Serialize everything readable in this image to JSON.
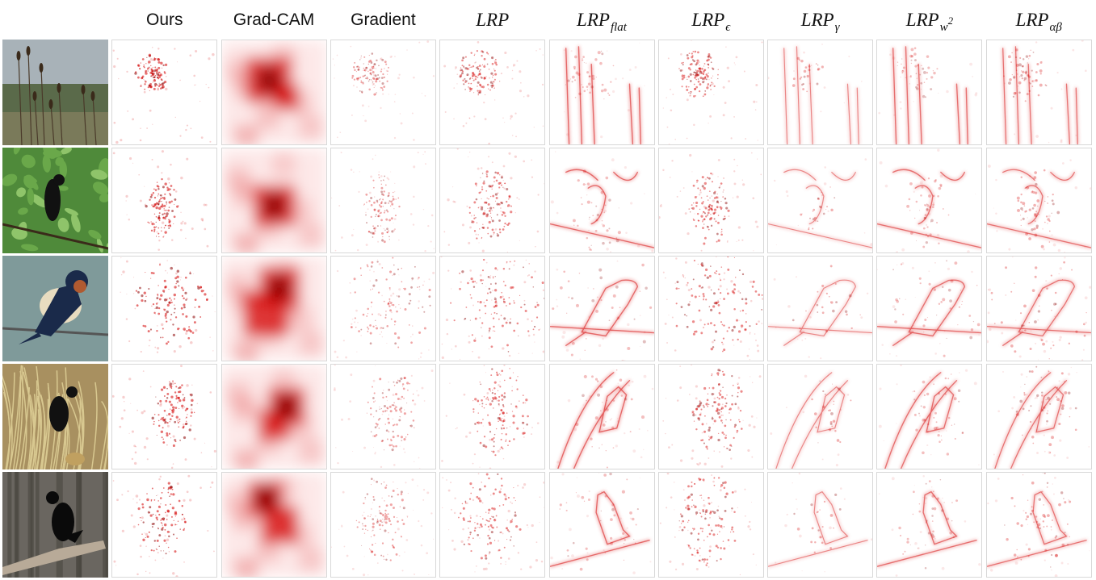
{
  "figure": {
    "columns": [
      {
        "id": "input",
        "label": ""
      },
      {
        "id": "ours",
        "label": "Ours",
        "style": "sans"
      },
      {
        "id": "gradcam",
        "label": "Grad-CAM",
        "style": "sans"
      },
      {
        "id": "gradient",
        "label": "Gradient",
        "style": "sans"
      },
      {
        "id": "lrp",
        "label": "LRP",
        "style": "serif",
        "sub": "",
        "sup": ""
      },
      {
        "id": "lrp-flat",
        "label": "LRP",
        "style": "serif",
        "sub": "flat",
        "sup": ""
      },
      {
        "id": "lrp-epsilon",
        "label": "LRP",
        "style": "serif",
        "sub": "ϵ",
        "sup": ""
      },
      {
        "id": "lrp-gamma",
        "label": "LRP",
        "style": "serif",
        "sub": "γ",
        "sup": ""
      },
      {
        "id": "lrp-w2",
        "label": "LRP",
        "style": "serif",
        "sub": "w",
        "sup": "2"
      },
      {
        "id": "lrp-alphabeta",
        "label": "LRP",
        "style": "serif",
        "sub": "αβ",
        "sup": ""
      }
    ],
    "rows": [
      {
        "id": "cattails",
        "scene": "reeds"
      },
      {
        "id": "blackbird-leaves",
        "scene": "foliage"
      },
      {
        "id": "swallow",
        "scene": "swallow"
      },
      {
        "id": "grackle",
        "scene": "grass"
      },
      {
        "id": "crow",
        "scene": "crow"
      }
    ],
    "colors": {
      "heat": "#d40000",
      "heat-dark": "#8a0000",
      "border": "#d8d8d8"
    }
  }
}
